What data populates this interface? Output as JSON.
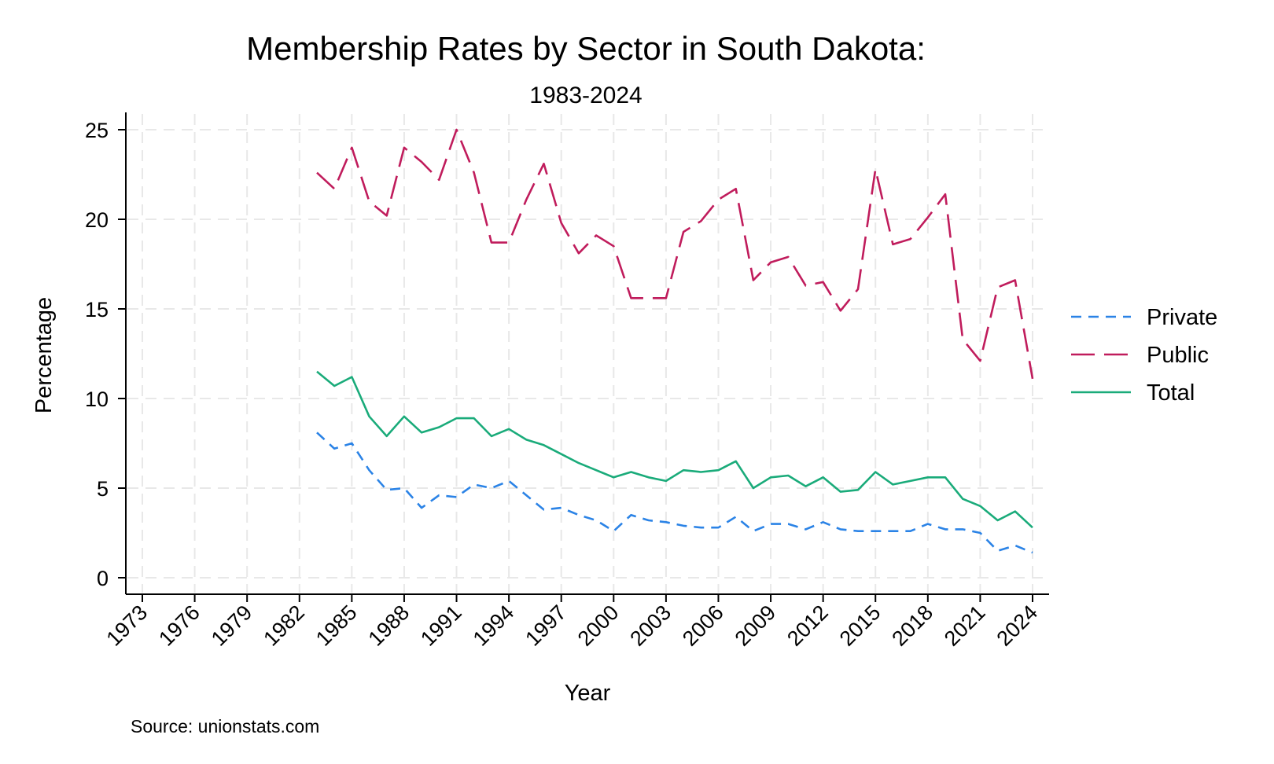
{
  "chart_data": {
    "type": "line",
    "title": "Membership Rates by Sector in South Dakota:",
    "subtitle": "1983-2024",
    "xlabel": "Year",
    "ylabel": "Percentage",
    "note": "Source: unionstats.com",
    "xlim": [
      1973,
      2024
    ],
    "ylim": [
      0,
      25
    ],
    "x_ticks": [
      1973,
      1976,
      1979,
      1982,
      1985,
      1988,
      1991,
      1994,
      1997,
      2000,
      2003,
      2006,
      2009,
      2012,
      2015,
      2018,
      2021,
      2024
    ],
    "y_ticks": [
      0,
      5,
      10,
      15,
      20,
      25
    ],
    "grid": true,
    "legend_position": "right",
    "x": [
      1983,
      1984,
      1985,
      1986,
      1987,
      1988,
      1989,
      1990,
      1991,
      1992,
      1993,
      1994,
      1995,
      1996,
      1997,
      1998,
      1999,
      2000,
      2001,
      2002,
      2003,
      2004,
      2005,
      2006,
      2007,
      2008,
      2009,
      2010,
      2011,
      2012,
      2013,
      2014,
      2015,
      2016,
      2017,
      2018,
      2019,
      2020,
      2021,
      2022,
      2023,
      2024
    ],
    "series": [
      {
        "name": "Private",
        "color": "#2b83e6",
        "dash": "short",
        "values": [
          8.1,
          7.2,
          7.5,
          6.0,
          4.9,
          5.0,
          3.9,
          4.6,
          4.5,
          5.2,
          5.0,
          5.4,
          4.6,
          3.8,
          3.9,
          3.5,
          3.2,
          2.6,
          3.5,
          3.2,
          3.1,
          2.9,
          2.8,
          2.8,
          3.4,
          2.6,
          3.0,
          3.0,
          2.7,
          3.1,
          2.7,
          2.6,
          2.6,
          2.6,
          2.6,
          3.0,
          2.7,
          2.7,
          2.5,
          1.5,
          1.8,
          1.4
        ]
      },
      {
        "name": "Public",
        "color": "#c01c5c",
        "dash": "long",
        "values": [
          22.6,
          21.7,
          24.0,
          21.0,
          20.2,
          24.0,
          23.2,
          22.2,
          25.0,
          22.6,
          18.7,
          18.7,
          21.1,
          23.1,
          19.8,
          18.1,
          19.1,
          18.5,
          15.6,
          15.6,
          15.6,
          19.3,
          19.9,
          21.1,
          21.7,
          16.6,
          17.6,
          17.9,
          16.3,
          16.5,
          14.9,
          16.1,
          22.8,
          18.6,
          18.9,
          20.1,
          21.4,
          13.3,
          12.1,
          16.2,
          16.6,
          11.1
        ]
      },
      {
        "name": "Total",
        "color": "#1aab7a",
        "dash": "solid",
        "values": [
          11.5,
          10.7,
          11.2,
          9.0,
          7.9,
          9.0,
          8.1,
          8.4,
          8.9,
          8.9,
          7.9,
          8.3,
          7.7,
          7.4,
          6.9,
          6.4,
          6.0,
          5.6,
          5.9,
          5.6,
          5.4,
          6.0,
          5.9,
          6.0,
          6.5,
          5.0,
          5.6,
          5.7,
          5.1,
          5.6,
          4.8,
          4.9,
          5.9,
          5.2,
          5.4,
          5.6,
          5.6,
          4.4,
          4.0,
          3.2,
          3.7,
          2.8
        ]
      }
    ]
  }
}
